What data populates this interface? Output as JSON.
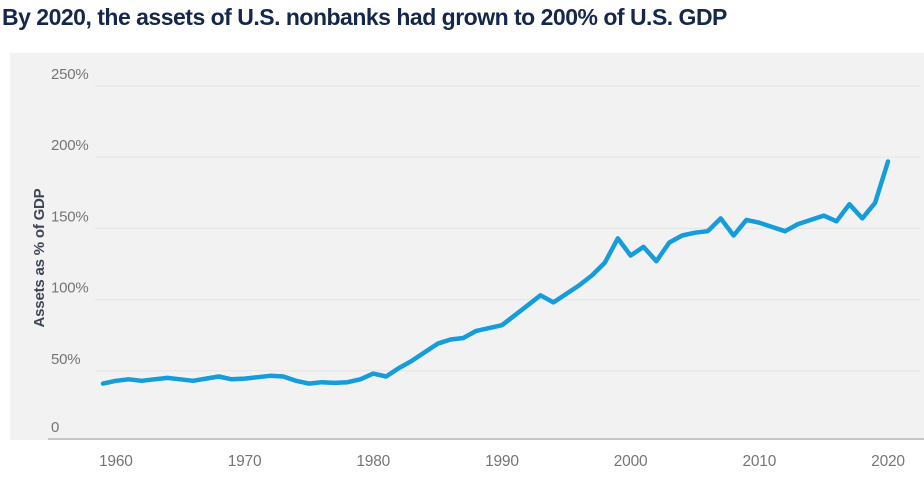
{
  "header": {
    "title": "By 2020, the assets of U.S. nonbanks had grown to 200% of U.S. GDP"
  },
  "colors": {
    "title_navy": "#15284B",
    "line_blue": "#149CDB",
    "panel_gray": "#F2F2F2",
    "gridline_gray": "#E4E4E4",
    "axis_line_gray": "#C6C6C6",
    "tick_text_gray": "#757575"
  },
  "chart_data": {
    "type": "line",
    "title": "By 2020, the assets of U.S. nonbanks had grown to 200% of U.S. GDP",
    "xlabel": "",
    "ylabel": "Assets as % of GDP",
    "grid": true,
    "legend": "none",
    "ylim": [
      0,
      270
    ],
    "xlim": [
      1958.5,
      2021.5
    ],
    "yticks": [
      {
        "value": 0,
        "label": "0"
      },
      {
        "value": 50,
        "label": "50%"
      },
      {
        "value": 100,
        "label": "100%"
      },
      {
        "value": 150,
        "label": "150%"
      },
      {
        "value": 200,
        "label": "200%"
      },
      {
        "value": 250,
        "label": "250%"
      }
    ],
    "xticks": [
      {
        "value": 1960,
        "label": "1960"
      },
      {
        "value": 1970,
        "label": "1970"
      },
      {
        "value": 1980,
        "label": "1980"
      },
      {
        "value": 1990,
        "label": "1990"
      },
      {
        "value": 2000,
        "label": "2000"
      },
      {
        "value": 2010,
        "label": "2010"
      },
      {
        "value": 2020,
        "label": "2020"
      }
    ],
    "x": [
      1959,
      1960,
      1961,
      1962,
      1963,
      1964,
      1965,
      1966,
      1967,
      1968,
      1969,
      1970,
      1971,
      1972,
      1973,
      1974,
      1975,
      1976,
      1977,
      1978,
      1979,
      1980,
      1981,
      1982,
      1983,
      1984,
      1985,
      1986,
      1987,
      1988,
      1989,
      1990,
      1991,
      1992,
      1993,
      1994,
      1995,
      1996,
      1997,
      1998,
      1999,
      2000,
      2001,
      2002,
      2003,
      2004,
      2005,
      2006,
      2007,
      2008,
      2009,
      2010,
      2011,
      2012,
      2013,
      2014,
      2015,
      2016,
      2017,
      2018,
      2019,
      2020
    ],
    "series": [
      {
        "name": "U.S. nonbank assets as % of GDP",
        "values": [
          41,
          43,
          44,
          43,
          44,
          45,
          44,
          43,
          44.5,
          46,
          44,
          44.5,
          45.5,
          46.5,
          46,
          43,
          41,
          42,
          41.5,
          42,
          44,
          48,
          46,
          52,
          57,
          63,
          69,
          72,
          73,
          78,
          80,
          82,
          89,
          96,
          103,
          98,
          104,
          110,
          117,
          126,
          143,
          131,
          137,
          127,
          140,
          145,
          147,
          148,
          157,
          145,
          156,
          154,
          151,
          148,
          153,
          156,
          159,
          155,
          167,
          157,
          168,
          197
        ]
      }
    ]
  }
}
